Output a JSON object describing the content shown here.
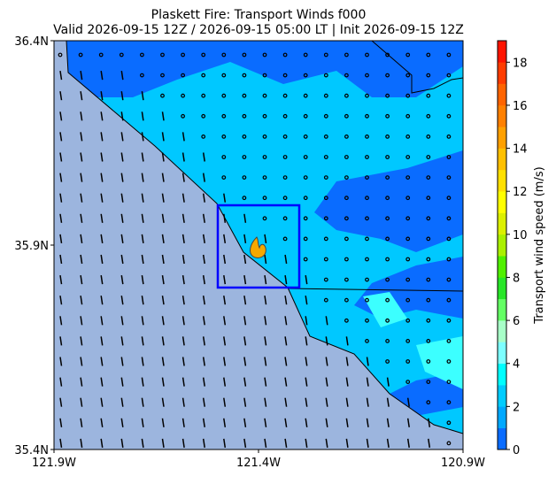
{
  "title": "Plaskett Fire: Transport Winds f000",
  "subtitle": "Valid 2026-09-15 12Z / 2026-09-15 05:00 LT | Init 2026-09-15 12Z",
  "map": {
    "xlim": [
      -121.9,
      -120.9
    ],
    "ylim": [
      35.4,
      36.4
    ],
    "xticks": [
      {
        "value": -121.9,
        "label": "121.9W"
      },
      {
        "value": -121.4,
        "label": "121.4W"
      },
      {
        "value": -120.9,
        "label": "120.9W"
      }
    ],
    "yticks": [
      {
        "value": 35.4,
        "label": "35.4N"
      },
      {
        "value": 35.9,
        "label": "35.9N"
      },
      {
        "value": 36.4,
        "label": "36.4N"
      }
    ]
  },
  "colorbar": {
    "label": "Transport wind speed (m/s)",
    "lim": [
      0,
      19
    ],
    "ticks": [
      0,
      2,
      4,
      6,
      8,
      10,
      12,
      14,
      16,
      18
    ],
    "levels": [
      0,
      1,
      2,
      3,
      4,
      5,
      6,
      7,
      8,
      9,
      10,
      11,
      12,
      13,
      14,
      15,
      16,
      17,
      18,
      19
    ],
    "colors": [
      "#0a6cff",
      "#00a8ff",
      "#00ccff",
      "#00ffff",
      "#7dffff",
      "#a8ffc8",
      "#64ff64",
      "#28e628",
      "#50f000",
      "#aaf000",
      "#dcf000",
      "#ffff00",
      "#ffe000",
      "#ffc000",
      "#ffa000",
      "#ff8000",
      "#ff6400",
      "#ff3c00",
      "#ff1400"
    ]
  }
}
